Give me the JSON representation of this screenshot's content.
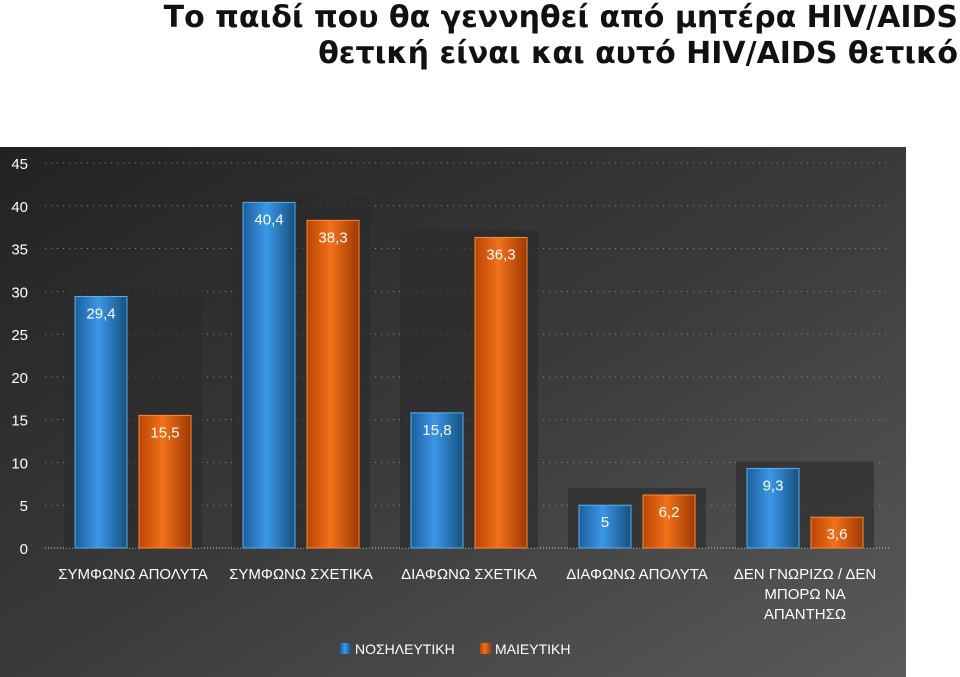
{
  "title": {
    "line1": "Το παιδί που θα γεννηθεί από μητέρα HIV/AIDS",
    "line2": "θετική είναι και αυτό HIV/AIDS θετικό"
  },
  "colors": {
    "background": "#3c3c3c",
    "text": "#ffffff",
    "series1": "#2e8bd6",
    "series2": "#e8610c"
  },
  "chart_data": {
    "type": "bar",
    "categories": [
      [
        "ΣΥΜΦΩΝΩ ΑΠΟΛΥΤΑ"
      ],
      [
        "ΣΥΜΦΩΝΩ ΣΧΕΤΙΚΑ"
      ],
      [
        "ΔΙΑΦΩΝΩ ΣΧΕΤΙΚΑ"
      ],
      [
        "ΔΙΑΦΩΝΩ ΑΠΟΛΥΤΑ"
      ],
      [
        "ΔΕΝ ΓΝΩΡΙΖΩ / ΔΕΝ",
        "ΜΠΟΡΩ ΝΑ",
        "ΑΠΑΝΤΗΣΩ"
      ]
    ],
    "series": [
      {
        "name": "ΝΟΣΗΛΕΥΤΙΚΗ",
        "values": [
          29.4,
          40.4,
          15.8,
          5,
          9.3
        ],
        "labels": [
          "29,4",
          "40,4",
          "15,8",
          "5",
          "9,3"
        ]
      },
      {
        "name": "ΜΑΙΕΥΤΙΚΗ",
        "values": [
          15.5,
          38.3,
          36.3,
          6.2,
          3.6
        ],
        "labels": [
          "15,5",
          "38,3",
          "36,3",
          "6,2",
          "3,6"
        ]
      }
    ],
    "yticks": [
      "0",
      "5",
      "10",
      "15",
      "20",
      "25",
      "30",
      "35",
      "40",
      "45"
    ],
    "ylim": [
      0,
      45
    ],
    "ystep": 5,
    "grid": true,
    "legend_position": "bottom"
  }
}
